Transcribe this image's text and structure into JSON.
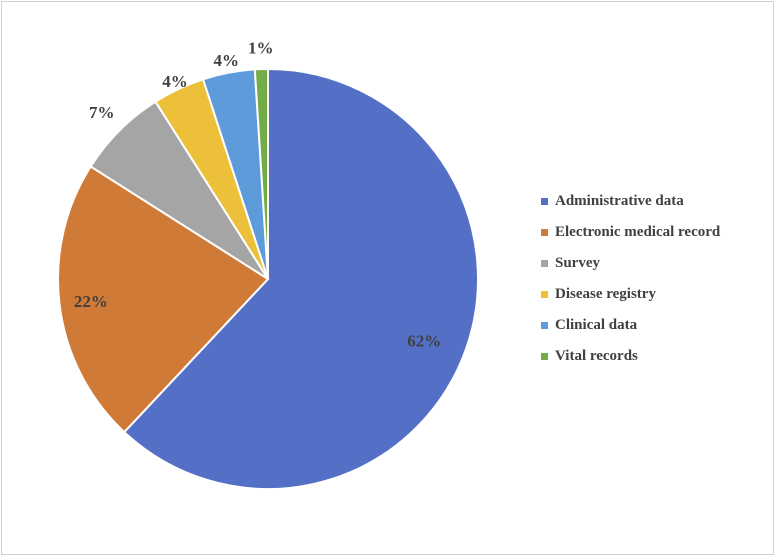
{
  "chart_data": {
    "type": "pie",
    "title": "",
    "categories": [
      "Administrative data",
      "Electronic medical record",
      "Survey",
      "Disease registry",
      "Clinical data",
      "Vital records"
    ],
    "values": [
      62,
      22,
      7,
      4,
      4,
      1
    ],
    "data_labels": [
      "62%",
      "22%",
      "7%",
      "4%",
      "4%",
      "1%"
    ],
    "colors": [
      "#5470C6",
      "#D07A38",
      "#A5A5A5",
      "#EDC03A",
      "#5D9BDB",
      "#72AD47"
    ],
    "legend_position": "right",
    "start_angle": "12 o'clock",
    "direction": "clockwise"
  }
}
